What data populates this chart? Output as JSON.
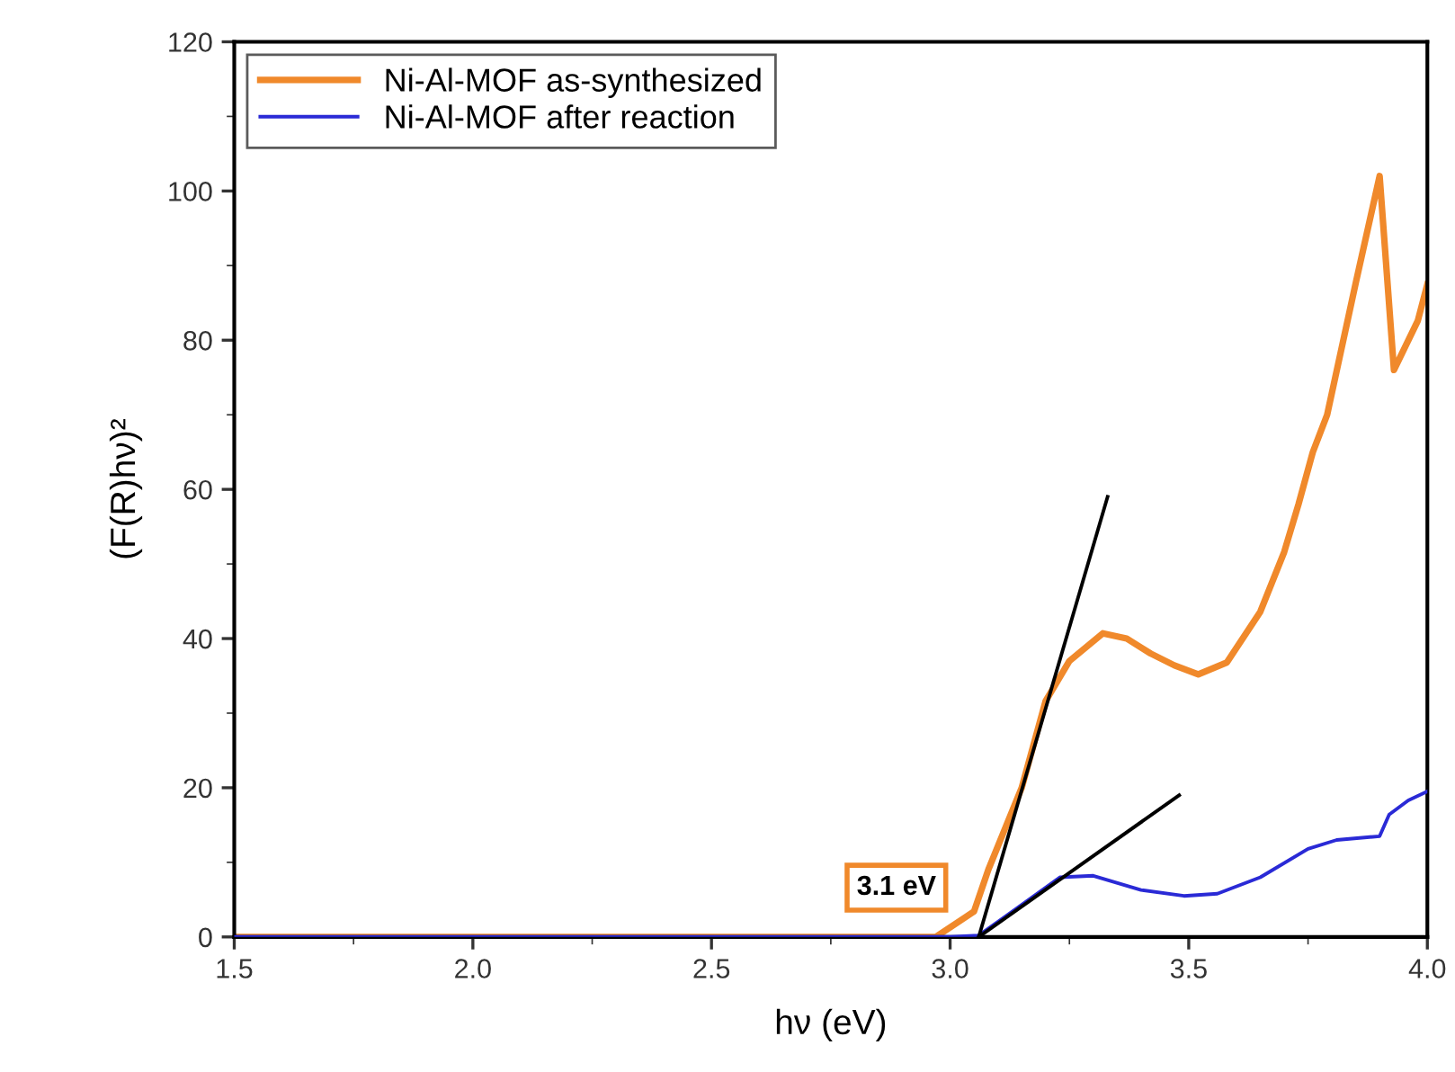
{
  "chart_data": {
    "type": "line",
    "xlabel": "hν (eV)",
    "ylabel": "(F(R)hν)²",
    "xlim": [
      1.5,
      4.0
    ],
    "ylim": [
      0,
      120
    ],
    "xticks": [
      1.5,
      {
        "value": 2.0,
        "label": "2.0"
      },
      2.5,
      {
        "value": 3.0,
        "label": "3.0"
      },
      3.5,
      {
        "value": 4.0,
        "label": "4.0"
      }
    ],
    "yticks": [
      0,
      20,
      40,
      60,
      80,
      100,
      120
    ],
    "grid": false,
    "legend": "top left",
    "marker": "none",
    "line_style": "solid",
    "annotations": [
      "3.1 eV"
    ],
    "series": [
      {
        "name": "Ni-Al-MOF as-synthesized",
        "color": "#f0892b",
        "x": [
          1.5,
          2.97,
          3.05,
          3.08,
          3.15,
          3.2,
          3.25,
          3.32,
          3.37,
          3.42,
          3.47,
          3.52,
          3.58,
          3.65,
          3.7,
          3.73,
          3.76,
          3.79,
          3.85,
          3.9,
          3.93,
          3.98,
          4.0
        ],
        "values": [
          0,
          0,
          3.4,
          9,
          20,
          31.6,
          37,
          40.7,
          40,
          38,
          36.4,
          35.2,
          36.8,
          43.6,
          51.6,
          58,
          65,
          70,
          87.7,
          102,
          76,
          82.6,
          87.5
        ]
      },
      {
        "name": "Ni-Al-MOF after reaction",
        "color": "#2a2ad6",
        "x": [
          1.5,
          3.0,
          3.06,
          3.15,
          3.23,
          3.3,
          3.4,
          3.49,
          3.56,
          3.65,
          3.75,
          3.81,
          3.9,
          3.92,
          3.96,
          4.0
        ],
        "values": [
          0,
          0,
          0.2,
          4.3,
          8,
          8.2,
          6.3,
          5.5,
          5.8,
          8,
          11.8,
          13,
          13.5,
          16.4,
          18.3,
          19.5
        ]
      },
      {
        "type": "line",
        "color": "#000000",
        "x": [
          3.06,
          3.33
        ],
        "values": [
          0,
          59
        ]
      },
      {
        "type": "line",
        "color": "#000000",
        "x": [
          3.06,
          3.48
        ],
        "values": [
          0,
          19
        ]
      }
    ]
  }
}
